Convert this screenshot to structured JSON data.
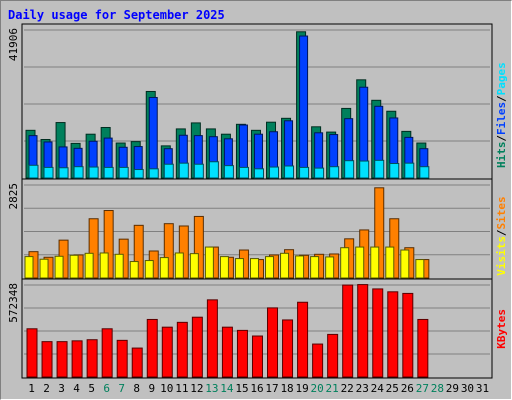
{
  "colors": {
    "background": "#c0c0c0",
    "plot_bg": "#c0c0c0",
    "title": "#0000ff",
    "hits": "#00805c",
    "files": "#0040ff",
    "pages": "#00e0ff",
    "visits": "#ffff00",
    "sites": "#ff8000",
    "kbytes": "#ff0000",
    "weekend_label": "#00805c",
    "weekday_label": "#000000"
  },
  "chart_data": {
    "type": "bar",
    "title": "Daily usage for September 2025",
    "categories": [
      "1",
      "2",
      "3",
      "4",
      "5",
      "6",
      "7",
      "8",
      "9",
      "10",
      "11",
      "12",
      "13",
      "14",
      "15",
      "16",
      "17",
      "18",
      "19",
      "20",
      "21",
      "22",
      "23",
      "24",
      "25",
      "26",
      "27",
      "28",
      "29",
      "30",
      "31"
    ],
    "weekend_days": [
      "6",
      "7",
      "13",
      "14",
      "20",
      "21",
      "27",
      "28"
    ],
    "panels": [
      {
        "name": "top",
        "ymax_label": "41906",
        "ymax": 41906,
        "side_legend": [
          "Hits",
          "Files",
          "Pages"
        ],
        "series": [
          {
            "name": "Hits",
            "values": [
              13500,
              10900,
              15700,
              9800,
              12400,
              14300,
              9900,
              10300,
              24500,
              9100,
              13900,
              15600,
              13900,
              12400,
              15200,
              13500,
              15800,
              16900,
              41400,
              14500,
              13000,
              19700,
              27800,
              22000,
              18900,
              13200,
              9900,
              0,
              0,
              0,
              0
            ]
          },
          {
            "name": "Files",
            "values": [
              12000,
              10200,
              8800,
              8400,
              10400,
              11300,
              8700,
              8900,
              22800,
              8300,
              12100,
              12000,
              11700,
              11100,
              15000,
              12400,
              13100,
              16200,
              40200,
              12800,
              12300,
              16800,
              25700,
              20300,
              17000,
              11500,
              8300,
              0,
              0,
              0,
              0
            ]
          },
          {
            "name": "Pages",
            "values": [
              3600,
              3000,
              2900,
              3200,
              3100,
              3000,
              3000,
              2400,
              2600,
              3900,
              4200,
              3900,
              4600,
              3500,
              3000,
              2600,
              3100,
              3400,
              3000,
              2800,
              3200,
              4900,
              4800,
              5000,
              4100,
              4200,
              3200,
              0,
              0,
              0,
              0
            ]
          }
        ]
      },
      {
        "name": "middle",
        "ymax_label": "2825",
        "ymax": 2825,
        "side_legend": [
          "Visits",
          "Sites"
        ],
        "series": [
          {
            "name": "Sites",
            "values": [
              800,
              630,
              1150,
              700,
              1800,
              2050,
              1180,
              1600,
              820,
              1650,
              1580,
              1870,
              940,
              630,
              850,
              560,
              700,
              860,
              690,
              720,
              730,
              1190,
              1460,
              2740,
              1800,
              920,
              560,
              0,
              0,
              0,
              0
            ]
          },
          {
            "name": "Visits",
            "values": [
              650,
              570,
              660,
              690,
              750,
              760,
              720,
              500,
              530,
              620,
              760,
              740,
              940,
              650,
              590,
              590,
              650,
              750,
              670,
              650,
              640,
              920,
              940,
              940,
              940,
              850,
              560,
              0,
              0,
              0,
              0
            ]
          }
        ]
      },
      {
        "name": "bottom",
        "ymax_label": "572348",
        "ymax": 572348,
        "side_legend": [
          "KBytes"
        ],
        "series": [
          {
            "name": "KBytes",
            "values": [
              300000,
              220000,
              220000,
              225000,
              232000,
              300000,
              228000,
              180000,
              358000,
              310000,
              340000,
              372000,
              480000,
              310000,
              290000,
              255000,
              430000,
              355000,
              465000,
              205000,
              265000,
              572000,
              575000,
              548000,
              530000,
              520000,
              358000,
              0,
              0,
              0,
              0
            ]
          }
        ]
      }
    ]
  }
}
